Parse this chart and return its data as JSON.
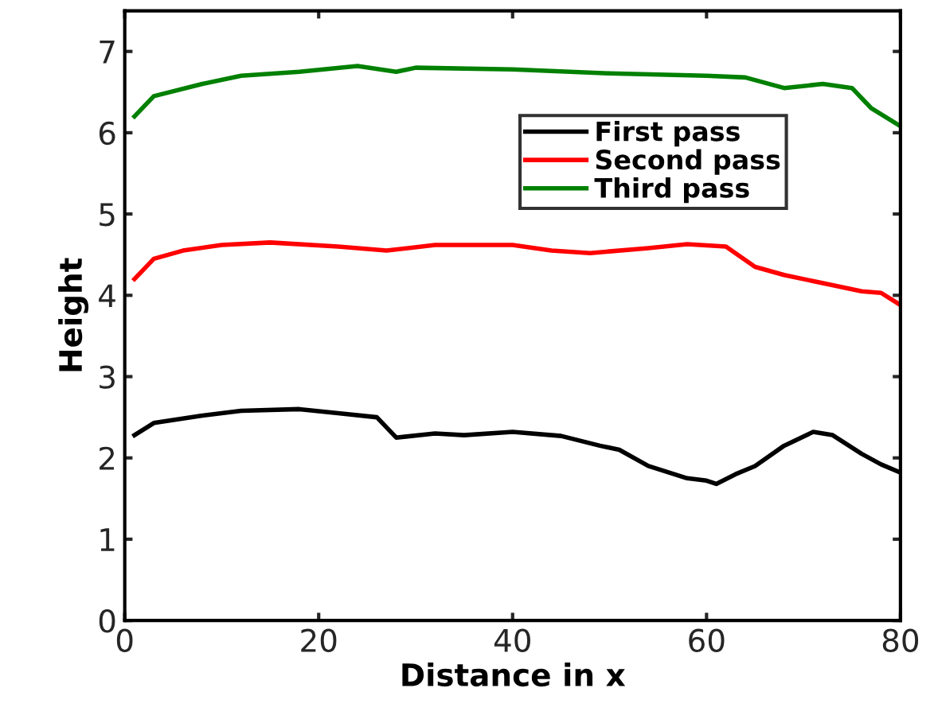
{
  "chart_data": {
    "type": "line",
    "xlabel": "Distance in x",
    "ylabel": "Height",
    "xlim": [
      0,
      80
    ],
    "ylim": [
      0,
      7.5
    ],
    "xticks": [
      0,
      20,
      40,
      60,
      80
    ],
    "yticks": [
      0,
      1,
      2,
      3,
      4,
      5,
      6,
      7
    ],
    "grid": false,
    "legend": "top right",
    "line_style": "solid",
    "marker": "none",
    "series": [
      {
        "name": "First pass",
        "color": "#000000",
        "x": [
          1,
          3,
          8,
          12,
          18,
          22,
          26,
          28,
          32,
          35,
          40,
          45,
          49,
          51,
          54,
          58,
          60,
          61,
          63,
          65,
          68,
          71,
          73,
          76,
          78,
          80
        ],
        "values": [
          2.28,
          2.43,
          2.52,
          2.58,
          2.6,
          2.55,
          2.5,
          2.25,
          2.3,
          2.28,
          2.32,
          2.27,
          2.15,
          2.1,
          1.9,
          1.75,
          1.72,
          1.68,
          1.8,
          1.9,
          2.15,
          2.32,
          2.28,
          2.05,
          1.92,
          1.82
        ]
      },
      {
        "name": "Second pass",
        "color": "#ff0000",
        "x": [
          1,
          3,
          6,
          10,
          15,
          22,
          27,
          32,
          40,
          44,
          48,
          54,
          58,
          62,
          65,
          68,
          72,
          76,
          78,
          80
        ],
        "values": [
          4.2,
          4.45,
          4.55,
          4.62,
          4.65,
          4.6,
          4.55,
          4.62,
          4.62,
          4.55,
          4.52,
          4.58,
          4.63,
          4.6,
          4.35,
          4.25,
          4.15,
          4.05,
          4.03,
          3.88
        ]
      },
      {
        "name": "Third pass",
        "color": "#008000",
        "x": [
          1,
          3,
          8,
          12,
          18,
          24,
          28,
          30,
          40,
          50,
          60,
          64,
          68,
          72,
          75,
          77,
          80
        ],
        "values": [
          6.2,
          6.45,
          6.6,
          6.7,
          6.75,
          6.82,
          6.75,
          6.8,
          6.78,
          6.73,
          6.7,
          6.68,
          6.55,
          6.6,
          6.55,
          6.3,
          6.08
        ]
      }
    ]
  }
}
